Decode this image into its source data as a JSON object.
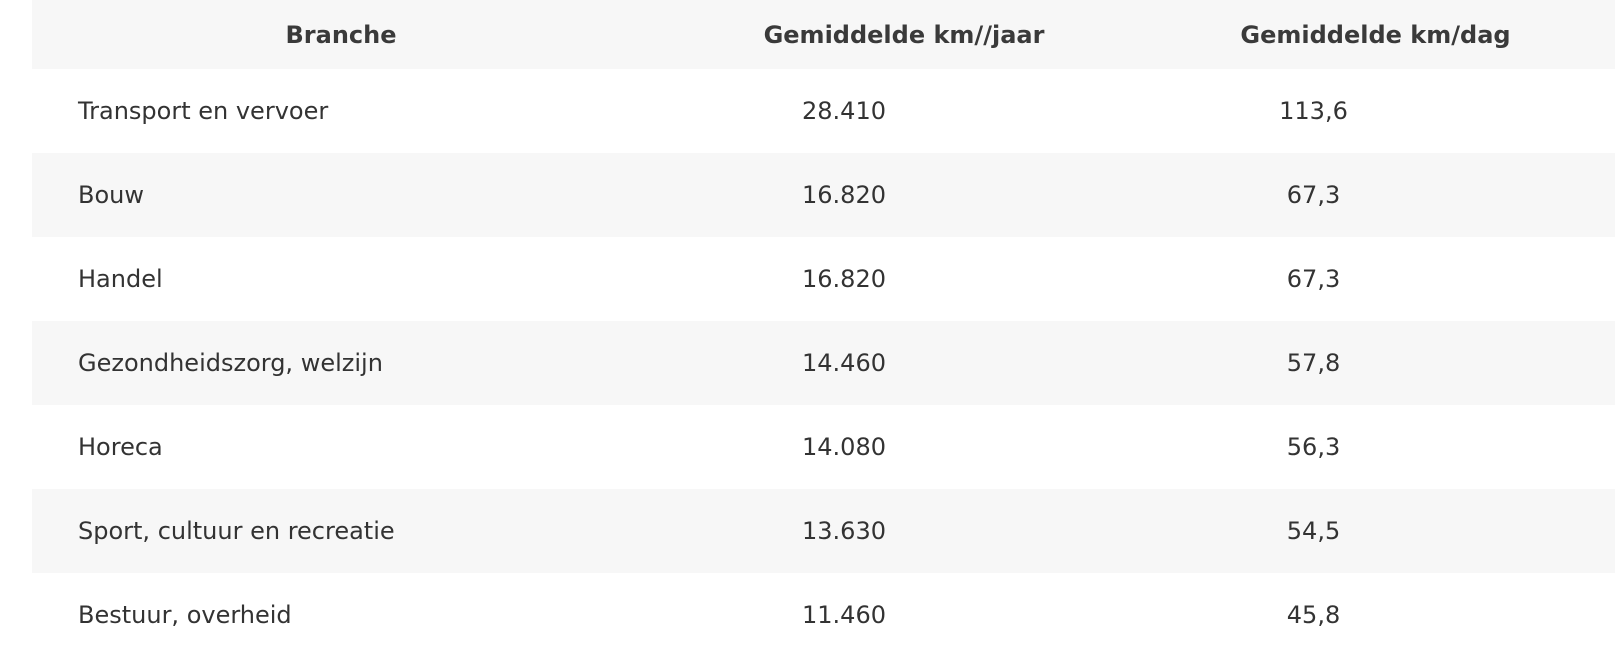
{
  "table": {
    "headers": [
      "Branche",
      "Gemiddelde km//jaar",
      "Gemiddelde km/dag"
    ],
    "rows": [
      [
        "Transport en vervoer",
        "28.410",
        "113,6"
      ],
      [
        "Bouw",
        "16.820",
        "67,3"
      ],
      [
        "Handel",
        "16.820",
        "67,3"
      ],
      [
        "Gezondheidszorg, welzijn",
        "14.460",
        "57,8"
      ],
      [
        "Horeca",
        "14.080",
        "56,3"
      ],
      [
        "Sport, cultuur en recreatie",
        "13.630",
        "54,5"
      ],
      [
        "Bestuur, overheid",
        "11.460",
        "45,8"
      ]
    ]
  },
  "colors": {
    "stripe": "#f7f7f7",
    "background": "#ffffff",
    "text": "#333333"
  }
}
